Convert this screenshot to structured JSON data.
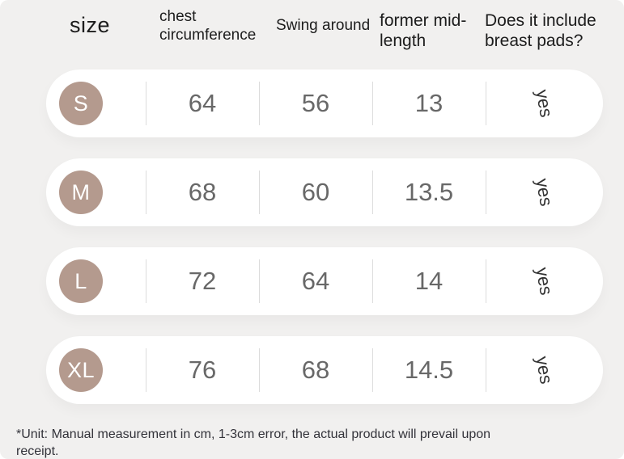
{
  "table": {
    "headers": {
      "size": "size",
      "chest": "chest circumference",
      "swing": "Swing around",
      "length": "former mid-length",
      "pads": "Does it include breast pads?"
    },
    "rows": [
      {
        "size": "S",
        "chest": "64",
        "swing": "56",
        "length": "13",
        "pads": "yes"
      },
      {
        "size": "M",
        "chest": "68",
        "swing": "60",
        "length": "13.5",
        "pads": "yes"
      },
      {
        "size": "L",
        "chest": "72",
        "swing": "64",
        "length": "14",
        "pads": "yes"
      },
      {
        "size": "XL",
        "chest": "76",
        "swing": "68",
        "length": "14.5",
        "pads": "yes"
      }
    ]
  },
  "footnote": "*Unit: Manual measurement in cm, 1-3cm error, the actual product will prevail upon receipt.",
  "colors": {
    "background": "#f1f0ef",
    "card": "#ffffff",
    "badge": "#b49a8e",
    "divider": "#dcdcdc",
    "number_text": "#686868",
    "header_text": "#1c1c1c",
    "footnote_text": "#33333a"
  },
  "chart_data": {
    "type": "table",
    "columns": [
      "size",
      "chest circumference",
      "Swing around",
      "former mid-length",
      "Does it include breast pads?"
    ],
    "rows": [
      [
        "S",
        64,
        56,
        13,
        "yes"
      ],
      [
        "M",
        68,
        60,
        13.5,
        "yes"
      ],
      [
        "L",
        72,
        64,
        14,
        "yes"
      ],
      [
        "XL",
        76,
        68,
        14.5,
        "yes"
      ]
    ],
    "title": "",
    "notes": "*Unit: Manual measurement in cm, 1-3cm error, the actual product will prevail upon receipt."
  }
}
